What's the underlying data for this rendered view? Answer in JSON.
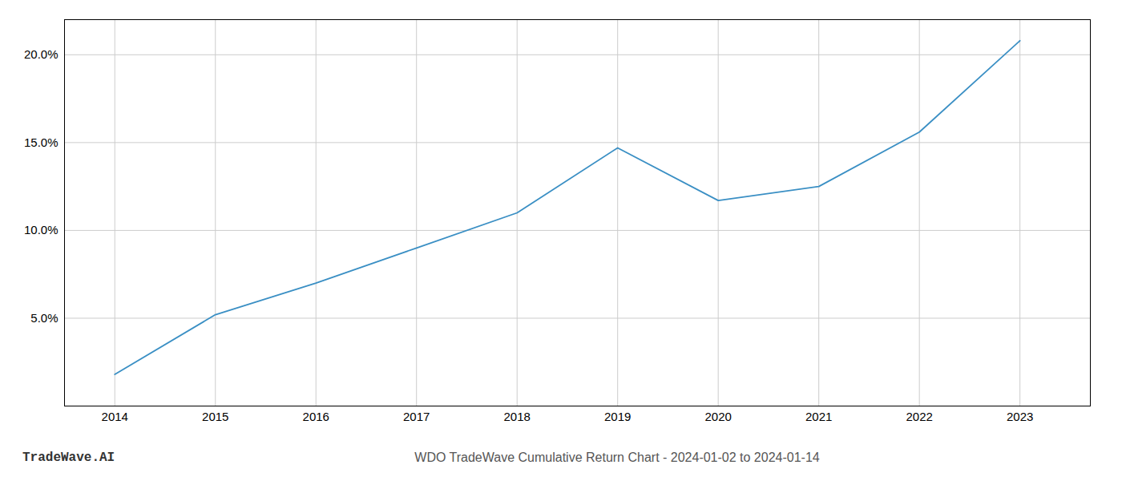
{
  "chart_data": {
    "type": "line",
    "title": "WDO TradeWave Cumulative Return Chart - 2024-01-02 to 2024-01-14",
    "annotations": [
      "TradeWave.AI"
    ],
    "x": [
      2014,
      2015,
      2016,
      2017,
      2018,
      2019,
      2020,
      2021,
      2022,
      2023
    ],
    "values": [
      1.8,
      5.2,
      7.0,
      9.0,
      11.0,
      14.7,
      11.7,
      12.5,
      15.6,
      20.8
    ],
    "color": "#3a8fc4",
    "xlim": [
      2013.5,
      2023.7
    ],
    "xticks": [
      2014,
      2015,
      2016,
      2017,
      2018,
      2019,
      2020,
      2021,
      2022,
      2023
    ],
    "ylim": [
      0,
      22
    ],
    "yticks": [
      {
        "value": 5.0,
        "label": "5.0%"
      },
      {
        "value": 10.0,
        "label": "10.0%"
      },
      {
        "value": 15.0,
        "label": "15.0%"
      },
      {
        "value": 20.0,
        "label": "20.0%"
      }
    ],
    "grid": true
  }
}
